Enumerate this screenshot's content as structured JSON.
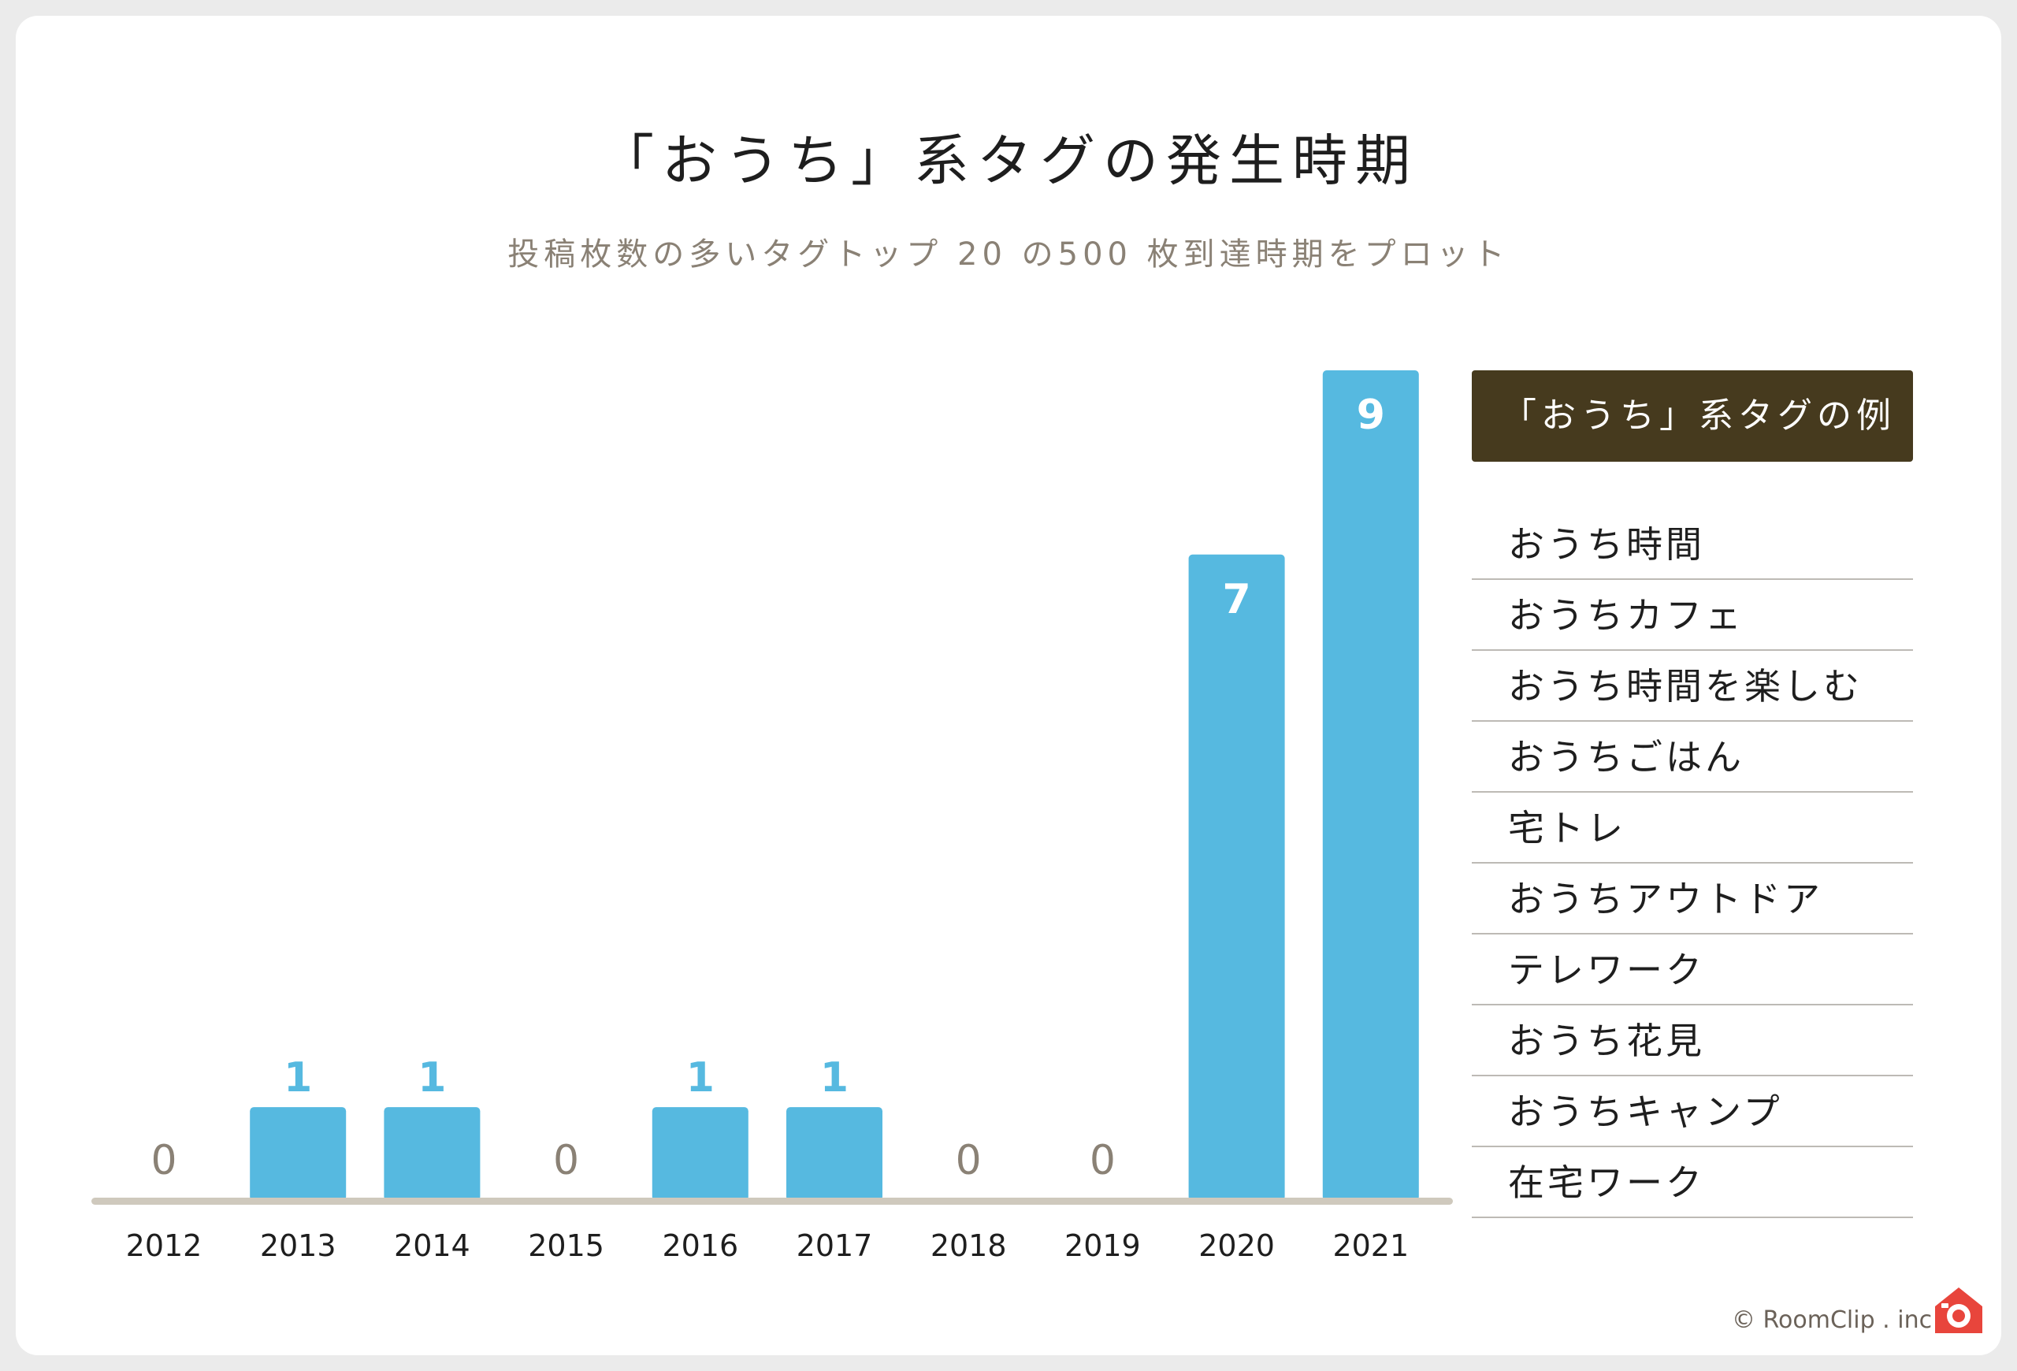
{
  "title": "「おうち」系タグの発生時期",
  "subtitle": "投稿枚数の多いタグトップ 20 の500 枚到達時期をプロット",
  "colors": {
    "bar": "#56b9e0",
    "zero_label": "#8a8175",
    "axis": "#cfc9bd",
    "legend_header_bg": "#463a1e",
    "logo": "#e8453c"
  },
  "chart_data": {
    "type": "bar",
    "categories": [
      "2012",
      "2013",
      "2014",
      "2015",
      "2016",
      "2017",
      "2018",
      "2019",
      "2020",
      "2021"
    ],
    "values": [
      0,
      1,
      1,
      0,
      1,
      1,
      0,
      0,
      7,
      9
    ],
    "title": "「おうち」系タグの発生時期",
    "subtitle": "投稿枚数の多いタグトップ 20 の500 枚到達時期をプロット",
    "xlabel": "",
    "ylabel": "",
    "ylim": [
      0,
      9
    ],
    "grid": false
  },
  "legend": {
    "header": "「おうち」系タグの例",
    "items": [
      "おうち時間",
      "おうちカフェ",
      "おうち時間を楽しむ",
      "おうちごはん",
      "宅トレ",
      "おうちアウトドア",
      "テレワーク",
      "おうち花見",
      "おうちキャンプ",
      "在宅ワーク"
    ]
  },
  "credit": "© RoomClip . inc",
  "logo_icon": "roomclip-house-camera-icon"
}
